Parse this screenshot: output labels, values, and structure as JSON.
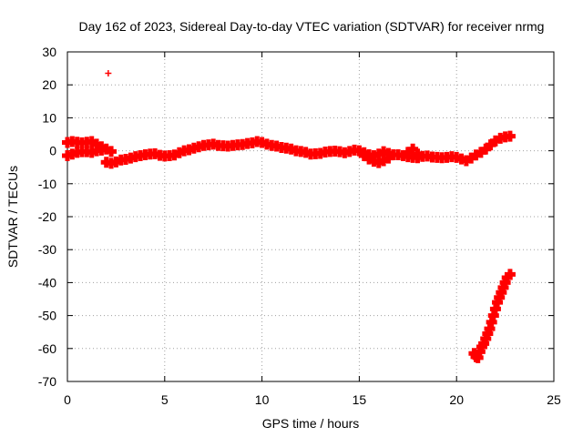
{
  "chart_data": {
    "type": "scatter",
    "title": "Day 162 of 2023, Sidereal Day-to-day VTEC variation (SDTVAR) for receiver nrmg",
    "xlabel": "GPS time / hours",
    "ylabel": "SDTVAR / TECUs",
    "xlim": [
      0,
      25
    ],
    "ylim": [
      -70,
      30
    ],
    "xticks": [
      0,
      5,
      10,
      15,
      20,
      25
    ],
    "yticks": [
      30,
      20,
      10,
      0,
      -10,
      -20,
      -30,
      -40,
      -50,
      -60,
      -70
    ],
    "grid": true,
    "legend": "none",
    "marker": "plus",
    "series": [
      {
        "name": "SDTVAR",
        "color": "#ff0000",
        "x": [
          2.1,
          0.0,
          0.25,
          0.5,
          0.75,
          1.0,
          1.25,
          1.5,
          1.75,
          2.0,
          2.25,
          2.5,
          2.75,
          3.0,
          3.25,
          3.5,
          3.75,
          4.0,
          4.25,
          4.5,
          4.75,
          5.0,
          5.25,
          5.5,
          5.75,
          6.0,
          6.25,
          6.5,
          6.75,
          7.0,
          7.25,
          7.5,
          7.75,
          8.0,
          8.25,
          8.5,
          8.75,
          9.0,
          9.25,
          9.5,
          9.75,
          10.0,
          10.25,
          10.5,
          10.75,
          11.0,
          11.25,
          11.5,
          11.75,
          12.0,
          12.25,
          12.5,
          12.75,
          13.0,
          13.25,
          13.5,
          13.75,
          14.0,
          14.25,
          14.5,
          14.75,
          15.0,
          15.25,
          15.5,
          15.75,
          16.0,
          16.25,
          16.5,
          16.75,
          17.0,
          17.25,
          17.5,
          17.75,
          18.0,
          18.25,
          18.5,
          18.75,
          19.0,
          19.25,
          19.5,
          19.75,
          20.0,
          20.25,
          20.5,
          20.75,
          21.0,
          21.25,
          21.5,
          21.75,
          22.0,
          22.25,
          22.5,
          22.75,
          0.0,
          0.25,
          0.5,
          0.75,
          1.0,
          1.25,
          1.5,
          1.75,
          2.0,
          2.25,
          15.25,
          15.5,
          15.75,
          16.0,
          16.25,
          16.5,
          17.5,
          17.75,
          18.0,
          20.9,
          21.0,
          21.1,
          21.2,
          21.3,
          21.4,
          21.5,
          21.6,
          21.7,
          21.8,
          21.9,
          22.0,
          22.1,
          22.2,
          22.3,
          22.4,
          22.5,
          22.6,
          22.75
        ],
        "y": [
          23.5,
          -1.5,
          -1.0,
          -0.5,
          -0.3,
          -0.3,
          -0.5,
          0.0,
          0.2,
          -3.5,
          -3.8,
          -3.4,
          -2.8,
          -2.6,
          -2.2,
          -1.8,
          -1.5,
          -1.2,
          -1.0,
          -0.9,
          -1.4,
          -1.6,
          -1.5,
          -1.3,
          -0.6,
          0.0,
          0.3,
          0.8,
          1.2,
          1.6,
          1.8,
          2.0,
          1.6,
          1.5,
          1.4,
          1.6,
          1.8,
          1.9,
          2.2,
          2.4,
          2.8,
          2.5,
          2.0,
          1.6,
          1.4,
          1.0,
          0.8,
          0.5,
          0.0,
          -0.2,
          -0.5,
          -1.0,
          -0.9,
          -0.8,
          -0.4,
          -0.2,
          -0.1,
          -0.3,
          -0.6,
          -0.2,
          0.2,
          0.0,
          -0.6,
          -1.2,
          -1.5,
          -1.0,
          -0.3,
          -0.8,
          -1.2,
          -1.2,
          -1.5,
          -1.8,
          -2.0,
          -2.1,
          -1.7,
          -1.6,
          -1.9,
          -2.0,
          -2.1,
          -2.0,
          -1.8,
          -2.0,
          -2.5,
          -3.0,
          -2.2,
          -1.3,
          -0.5,
          0.5,
          1.8,
          3.0,
          3.8,
          4.2,
          4.4,
          2.5,
          2.8,
          2.6,
          2.4,
          2.6,
          2.8,
          2.0,
          1.2,
          0.5,
          -0.2,
          -1.5,
          -2.5,
          -3.2,
          -3.6,
          -3.0,
          -2.2,
          -0.5,
          0.5,
          -1.0,
          -61.5,
          -62.5,
          -62.8,
          -61.0,
          -59.5,
          -58.5,
          -57.0,
          -55.5,
          -54.0,
          -52.0,
          -50.0,
          -48.0,
          -46.0,
          -44.5,
          -43.0,
          -41.5,
          -40.0,
          -38.5,
          -37.5
        ]
      }
    ]
  }
}
